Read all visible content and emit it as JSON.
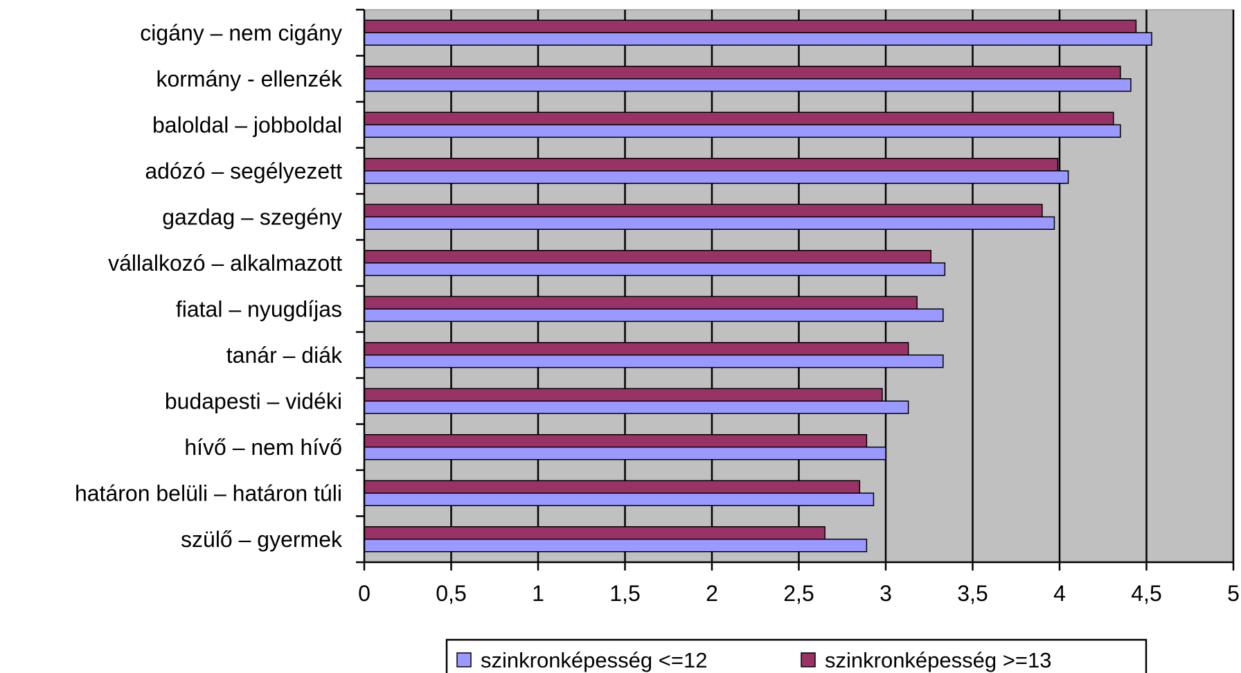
{
  "chart_data": {
    "type": "bar",
    "orientation": "horizontal",
    "categories": [
      "cigány – nem cigány",
      "kormány - ellenzék",
      "baloldal – jobboldal",
      "adózó – segélyezett",
      "gazdag – szegény",
      "vállalkozó – alkalmazott",
      "fiatal – nyugdíjas",
      "tanár – diák",
      "budapesti – vidéki",
      "hívő – nem hívő",
      "határon belüli – határon túli",
      "szülő – gyermek"
    ],
    "series": [
      {
        "name": "szinkronképesség <=12",
        "color": "#9999ff",
        "values": [
          4.53,
          4.41,
          4.35,
          4.05,
          3.97,
          3.34,
          3.33,
          3.33,
          3.13,
          3.0,
          2.93,
          2.89
        ]
      },
      {
        "name": "szinkronképesség >=13",
        "color": "#993366",
        "values": [
          4.44,
          4.35,
          4.31,
          3.99,
          3.9,
          3.26,
          3.18,
          3.13,
          2.98,
          2.89,
          2.85,
          2.65
        ]
      }
    ],
    "xlim": [
      0,
      5
    ],
    "xticks": [
      "0",
      "0,5",
      "1",
      "1,5",
      "2",
      "2,5",
      "3",
      "3,5",
      "4",
      "4,5",
      "5"
    ],
    "grid": true,
    "plot_background": "#c0c0c0",
    "legend_position": "bottom",
    "title": "",
    "xlabel": "",
    "ylabel": ""
  }
}
